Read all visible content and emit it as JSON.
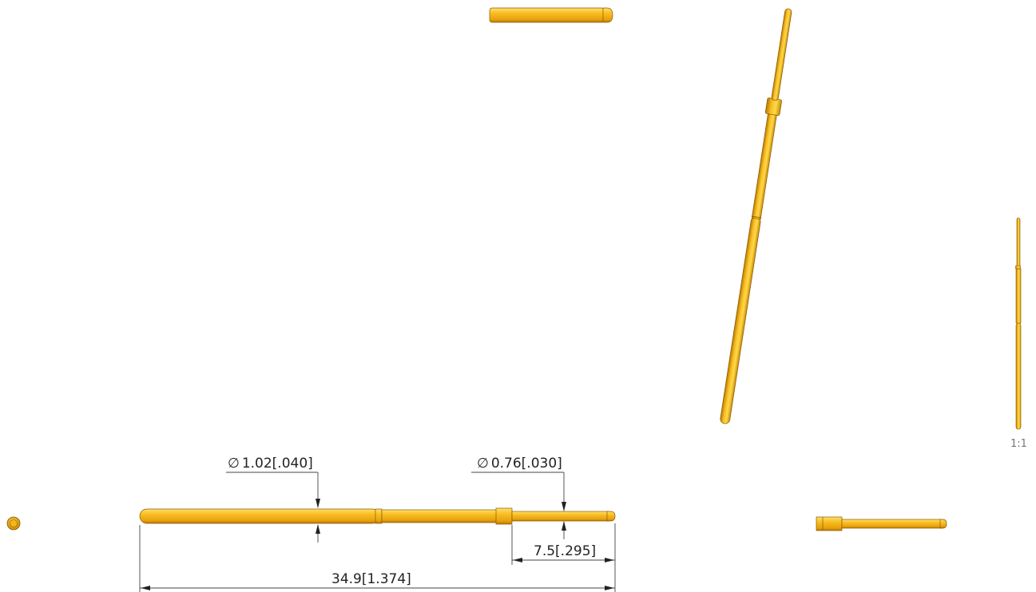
{
  "dimensions": {
    "body_diameter": "1.02[.040]",
    "tip_diameter": "0.76[.030]",
    "tip_length": "7.5[.295]",
    "overall_length": "34.9[1.374]"
  },
  "diameter_symbol": "∅",
  "detail_scale": "1:1",
  "colors": {
    "gold_fill": "#f7b61a",
    "gold_highlight": "#ffd94a",
    "gold_shadow": "#c98906",
    "gold_outline": "#8a5a00",
    "dimension_line": "#444444"
  }
}
